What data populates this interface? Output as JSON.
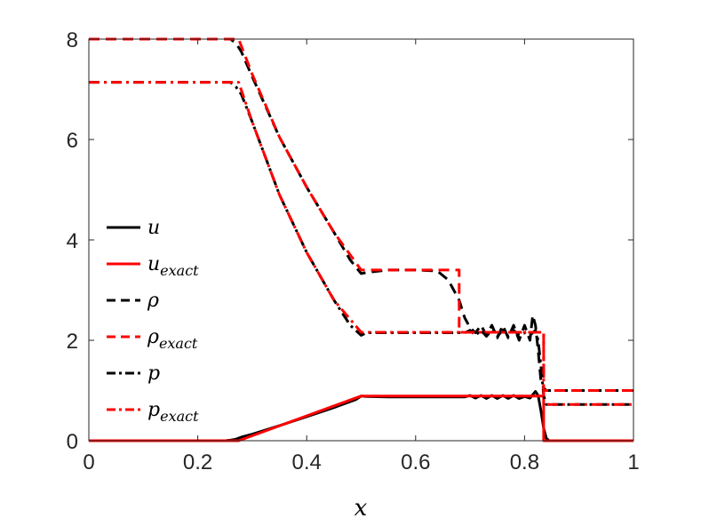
{
  "chart_data": {
    "type": "line",
    "title": "",
    "xlabel": "x",
    "ylabel": "",
    "xlim": [
      0,
      1
    ],
    "ylim": [
      0,
      8
    ],
    "xticks": [
      0,
      0.2,
      0.4,
      0.6,
      0.8,
      1
    ],
    "xtick_labels": [
      "0",
      "0.2",
      "0.4",
      "0.6",
      "0.8",
      "1"
    ],
    "yticks": [
      0,
      2,
      4,
      6,
      8
    ],
    "ytick_labels": [
      "0",
      "2",
      "4",
      "6",
      "8"
    ],
    "grid": false,
    "legend_position": "center-left",
    "series": [
      {
        "name": "u",
        "name_base": "u",
        "name_sub": "",
        "color": "#000000",
        "style": "solid",
        "points": [
          [
            0,
            0
          ],
          [
            0.25,
            0
          ],
          [
            0.26,
            0.01
          ],
          [
            0.27,
            0.03
          ],
          [
            0.28,
            0.07
          ],
          [
            0.3,
            0.13
          ],
          [
            0.35,
            0.3
          ],
          [
            0.4,
            0.48
          ],
          [
            0.45,
            0.66
          ],
          [
            0.49,
            0.82
          ],
          [
            0.5,
            0.89
          ],
          [
            0.51,
            0.88
          ],
          [
            0.55,
            0.87
          ],
          [
            0.6,
            0.87
          ],
          [
            0.65,
            0.87
          ],
          [
            0.69,
            0.87
          ],
          [
            0.7,
            0.9
          ],
          [
            0.71,
            0.85
          ],
          [
            0.72,
            0.9
          ],
          [
            0.73,
            0.84
          ],
          [
            0.74,
            0.9
          ],
          [
            0.75,
            0.84
          ],
          [
            0.76,
            0.9
          ],
          [
            0.77,
            0.84
          ],
          [
            0.78,
            0.9
          ],
          [
            0.79,
            0.84
          ],
          [
            0.8,
            0.88
          ],
          [
            0.81,
            0.85
          ],
          [
            0.82,
            0.98
          ],
          [
            0.825,
            0.9
          ],
          [
            0.83,
            0.6
          ],
          [
            0.835,
            0.25
          ],
          [
            0.84,
            0.05
          ],
          [
            0.845,
            0.0
          ],
          [
            1,
            0
          ]
        ]
      },
      {
        "name": "u_exact",
        "name_base": "u",
        "name_sub": "exact",
        "color": "#ff0000",
        "style": "solid",
        "points": [
          [
            0,
            0
          ],
          [
            0.275,
            0
          ],
          [
            0.5,
            0.89
          ],
          [
            0.835,
            0.89
          ],
          [
            0.835,
            0
          ],
          [
            1,
            0
          ]
        ]
      },
      {
        "name": "ρ",
        "name_base": "ρ",
        "name_sub": "",
        "color": "#000000",
        "style": "dashed",
        "points": [
          [
            0,
            8
          ],
          [
            0.26,
            8
          ],
          [
            0.27,
            7.92
          ],
          [
            0.28,
            7.75
          ],
          [
            0.3,
            7.25
          ],
          [
            0.35,
            6.05
          ],
          [
            0.4,
            5.05
          ],
          [
            0.45,
            4.15
          ],
          [
            0.48,
            3.6
          ],
          [
            0.5,
            3.33
          ],
          [
            0.51,
            3.35
          ],
          [
            0.55,
            3.4
          ],
          [
            0.6,
            3.4
          ],
          [
            0.64,
            3.38
          ],
          [
            0.66,
            3.2
          ],
          [
            0.68,
            2.8
          ],
          [
            0.69,
            2.45
          ],
          [
            0.7,
            2.25
          ],
          [
            0.71,
            2.15
          ],
          [
            0.72,
            2.3
          ],
          [
            0.73,
            2.1
          ],
          [
            0.74,
            2.3
          ],
          [
            0.75,
            2.05
          ],
          [
            0.76,
            2.3
          ],
          [
            0.77,
            2.05
          ],
          [
            0.78,
            2.3
          ],
          [
            0.79,
            2.0
          ],
          [
            0.8,
            2.3
          ],
          [
            0.81,
            2.0
          ],
          [
            0.815,
            2.5
          ],
          [
            0.82,
            2.3
          ],
          [
            0.825,
            1.8
          ],
          [
            0.83,
            1.2
          ],
          [
            0.835,
            1.05
          ],
          [
            0.84,
            1.0
          ],
          [
            1,
            1
          ]
        ]
      },
      {
        "name": "ρ_exact",
        "name_base": "ρ",
        "name_sub": "exact",
        "color": "#ff0000",
        "style": "dashed",
        "points": [
          [
            0,
            8
          ],
          [
            0.275,
            8
          ],
          [
            0.3,
            7.3
          ],
          [
            0.35,
            6.05
          ],
          [
            0.4,
            5.05
          ],
          [
            0.45,
            4.15
          ],
          [
            0.5,
            3.4
          ],
          [
            0.68,
            3.4
          ],
          [
            0.68,
            2.16
          ],
          [
            0.835,
            2.16
          ],
          [
            0.835,
            1
          ],
          [
            1,
            1
          ]
        ]
      },
      {
        "name": "p",
        "name_base": "p",
        "name_sub": "",
        "color": "#000000",
        "style": "dashdot",
        "points": [
          [
            0,
            7.14
          ],
          [
            0.26,
            7.14
          ],
          [
            0.27,
            7.05
          ],
          [
            0.28,
            6.9
          ],
          [
            0.3,
            6.35
          ],
          [
            0.35,
            4.9
          ],
          [
            0.4,
            3.75
          ],
          [
            0.45,
            2.8
          ],
          [
            0.48,
            2.3
          ],
          [
            0.5,
            2.1
          ],
          [
            0.51,
            2.15
          ],
          [
            0.55,
            2.15
          ],
          [
            0.6,
            2.15
          ],
          [
            0.65,
            2.15
          ],
          [
            0.69,
            2.15
          ],
          [
            0.7,
            2.2
          ],
          [
            0.71,
            2.1
          ],
          [
            0.72,
            2.2
          ],
          [
            0.73,
            2.08
          ],
          [
            0.74,
            2.2
          ],
          [
            0.75,
            2.08
          ],
          [
            0.76,
            2.2
          ],
          [
            0.77,
            2.08
          ],
          [
            0.78,
            2.2
          ],
          [
            0.79,
            2.1
          ],
          [
            0.8,
            2.15
          ],
          [
            0.81,
            2.1
          ],
          [
            0.82,
            2.2
          ],
          [
            0.825,
            2.0
          ],
          [
            0.83,
            1.5
          ],
          [
            0.835,
            0.9
          ],
          [
            0.84,
            0.72
          ],
          [
            1,
            0.72
          ]
        ]
      },
      {
        "name": "p_exact",
        "name_base": "p",
        "name_sub": "exact",
        "color": "#ff0000",
        "style": "dashdot",
        "points": [
          [
            0,
            7.14
          ],
          [
            0.275,
            7.14
          ],
          [
            0.3,
            6.35
          ],
          [
            0.35,
            4.9
          ],
          [
            0.4,
            3.75
          ],
          [
            0.45,
            2.8
          ],
          [
            0.5,
            2.16
          ],
          [
            0.835,
            2.16
          ],
          [
            0.835,
            0.72
          ],
          [
            1,
            0.72
          ]
        ]
      }
    ]
  }
}
